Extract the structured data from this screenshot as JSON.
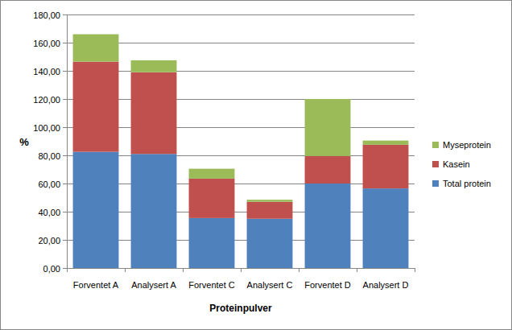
{
  "chart_data": {
    "type": "bar",
    "stacked": true,
    "x_label": "Proteinpulver",
    "y_label": "%",
    "categories": [
      "Forventet A",
      "Analysert A",
      "Forventet C",
      "Analysert C",
      "Forventet D",
      "Analysert D"
    ],
    "series": [
      {
        "name": "Total protein",
        "color": "#4f81bd",
        "values": [
          82.5,
          81,
          35.5,
          35,
          60,
          56.5
        ]
      },
      {
        "name": "Kasein",
        "color": "#c0504d",
        "values": [
          64,
          58,
          28,
          12,
          19.5,
          31
        ]
      },
      {
        "name": "Myseprotein",
        "color": "#9bbb59",
        "values": [
          19.5,
          8.5,
          7,
          1.5,
          40.5,
          3
        ]
      }
    ],
    "ylim": [
      0,
      180
    ],
    "yticks": [
      {
        "value": 0,
        "label": "0,00"
      },
      {
        "value": 20,
        "label": "20,00"
      },
      {
        "value": 40,
        "label": "40,00"
      },
      {
        "value": 60,
        "label": "60,00"
      },
      {
        "value": 80,
        "label": "80,00"
      },
      {
        "value": 100,
        "label": "100,00"
      },
      {
        "value": 120,
        "label": "120,00"
      },
      {
        "value": 140,
        "label": "140,00"
      },
      {
        "value": 160,
        "label": "160,00"
      },
      {
        "value": 180,
        "label": "180,00"
      }
    ],
    "grid": true,
    "legend": "right"
  }
}
